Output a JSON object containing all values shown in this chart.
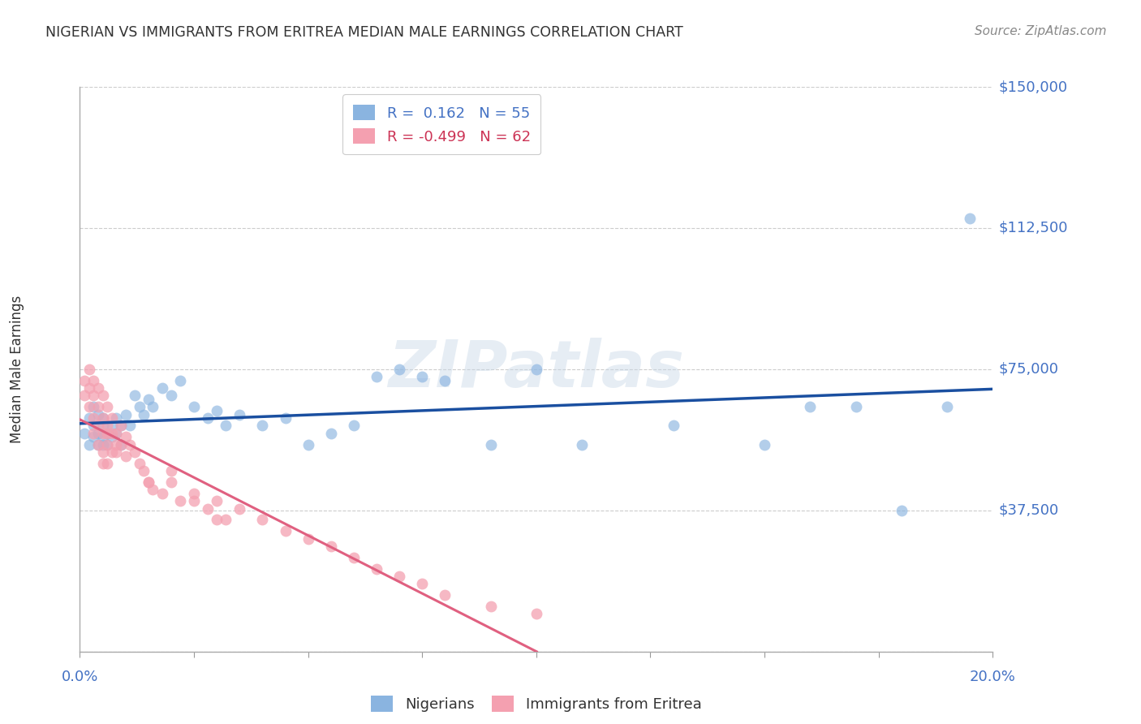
{
  "title": "NIGERIAN VS IMMIGRANTS FROM ERITREA MEDIAN MALE EARNINGS CORRELATION CHART",
  "source": "Source: ZipAtlas.com",
  "ylabel": "Median Male Earnings",
  "yticks": [
    0,
    37500,
    75000,
    112500,
    150000
  ],
  "ytick_labels": [
    "",
    "$37,500",
    "$75,000",
    "$112,500",
    "$150,000"
  ],
  "xlim": [
    0.0,
    0.2
  ],
  "ylim": [
    0,
    150000
  ],
  "watermark": "ZIPatlas",
  "legend_nigerian_r": "0.162",
  "legend_nigerian_n": "55",
  "legend_eritrea_r": "-0.499",
  "legend_eritrea_n": "62",
  "blue_color": "#8ab4e0",
  "pink_color": "#f4a0b0",
  "line_blue": "#1a4fa0",
  "line_pink": "#e06080",
  "nigerian_x": [
    0.001,
    0.002,
    0.002,
    0.003,
    0.003,
    0.003,
    0.004,
    0.004,
    0.004,
    0.005,
    0.005,
    0.005,
    0.005,
    0.006,
    0.006,
    0.007,
    0.007,
    0.008,
    0.008,
    0.009,
    0.009,
    0.01,
    0.011,
    0.012,
    0.013,
    0.014,
    0.015,
    0.016,
    0.018,
    0.02,
    0.022,
    0.025,
    0.028,
    0.03,
    0.032,
    0.035,
    0.04,
    0.045,
    0.05,
    0.055,
    0.06,
    0.065,
    0.07,
    0.075,
    0.08,
    0.09,
    0.1,
    0.11,
    0.13,
    0.15,
    0.16,
    0.17,
    0.18,
    0.19,
    0.195
  ],
  "nigerian_y": [
    58000,
    62000,
    55000,
    60000,
    57000,
    65000,
    58000,
    63000,
    55000,
    60000,
    57000,
    55000,
    62000,
    58000,
    55000,
    60000,
    57000,
    62000,
    58000,
    60000,
    55000,
    63000,
    60000,
    68000,
    65000,
    63000,
    67000,
    65000,
    70000,
    68000,
    72000,
    65000,
    62000,
    64000,
    60000,
    63000,
    60000,
    62000,
    55000,
    58000,
    60000,
    73000,
    75000,
    73000,
    72000,
    55000,
    75000,
    55000,
    60000,
    55000,
    65000,
    65000,
    37500,
    65000,
    115000
  ],
  "eritrea_x": [
    0.001,
    0.001,
    0.002,
    0.002,
    0.002,
    0.003,
    0.003,
    0.003,
    0.003,
    0.004,
    0.004,
    0.004,
    0.004,
    0.005,
    0.005,
    0.005,
    0.005,
    0.005,
    0.006,
    0.006,
    0.006,
    0.006,
    0.007,
    0.007,
    0.007,
    0.008,
    0.008,
    0.009,
    0.009,
    0.01,
    0.01,
    0.011,
    0.012,
    0.013,
    0.014,
    0.015,
    0.016,
    0.018,
    0.02,
    0.022,
    0.025,
    0.028,
    0.03,
    0.032,
    0.035,
    0.04,
    0.045,
    0.05,
    0.055,
    0.06,
    0.065,
    0.07,
    0.075,
    0.08,
    0.09,
    0.1,
    0.02,
    0.03,
    0.015,
    0.025,
    0.008,
    0.006
  ],
  "eritrea_y": [
    72000,
    68000,
    75000,
    70000,
    65000,
    72000,
    68000,
    62000,
    58000,
    70000,
    65000,
    60000,
    55000,
    68000,
    62000,
    58000,
    53000,
    50000,
    65000,
    60000,
    55000,
    50000,
    62000,
    58000,
    53000,
    58000,
    53000,
    60000,
    55000,
    57000,
    52000,
    55000,
    53000,
    50000,
    48000,
    45000,
    43000,
    42000,
    45000,
    40000,
    42000,
    38000,
    40000,
    35000,
    38000,
    35000,
    32000,
    30000,
    28000,
    25000,
    22000,
    20000,
    18000,
    15000,
    12000,
    10000,
    48000,
    35000,
    45000,
    40000,
    55000,
    58000
  ]
}
